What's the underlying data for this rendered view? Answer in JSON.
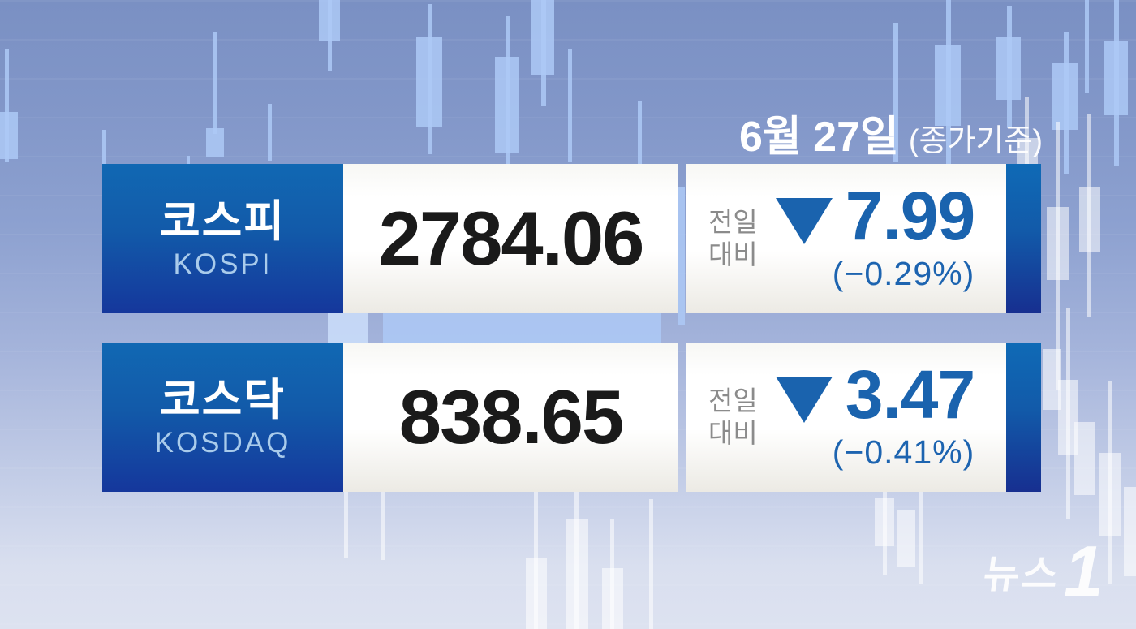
{
  "header": {
    "date": "6월 27일",
    "basis": "(종가기준)"
  },
  "labels": {
    "vs_prev_line1": "전일",
    "vs_prev_line2": "대비"
  },
  "rows": [
    {
      "name_ko": "코스피",
      "name_en": "KOSPI",
      "value": "2784.06",
      "direction": "down",
      "change": "7.99",
      "change_pct": "(−0.29%)"
    },
    {
      "name_ko": "코스닥",
      "name_en": "KOSDAQ",
      "value": "838.65",
      "direction": "down",
      "change": "3.47",
      "change_pct": "(−0.41%)"
    }
  ],
  "footer": {
    "logo_text": "뉴스",
    "logo_number": "1"
  },
  "colors": {
    "accent_blue": "#1a63ae",
    "label_gradient_top": "#1168b3",
    "label_gradient_bottom": "#15379c",
    "background_top": "#7a90c3",
    "background_bottom": "#dde2f0",
    "text_gray": "#8b8b8b",
    "value_black": "#1a1a1a"
  },
  "chart_data": {
    "type": "table",
    "title": "6월 27일 (종가기준)",
    "categories": [
      "코스피 KOSPI",
      "코스닥 KOSDAQ"
    ],
    "series": [
      {
        "name": "종가",
        "values": [
          2784.06,
          838.65
        ]
      },
      {
        "name": "전일대비",
        "values": [
          -7.99,
          -3.47
        ]
      },
      {
        "name": "전일대비 %",
        "values": [
          -0.29,
          -0.41
        ]
      }
    ],
    "legend_position": "none",
    "grid": false
  }
}
